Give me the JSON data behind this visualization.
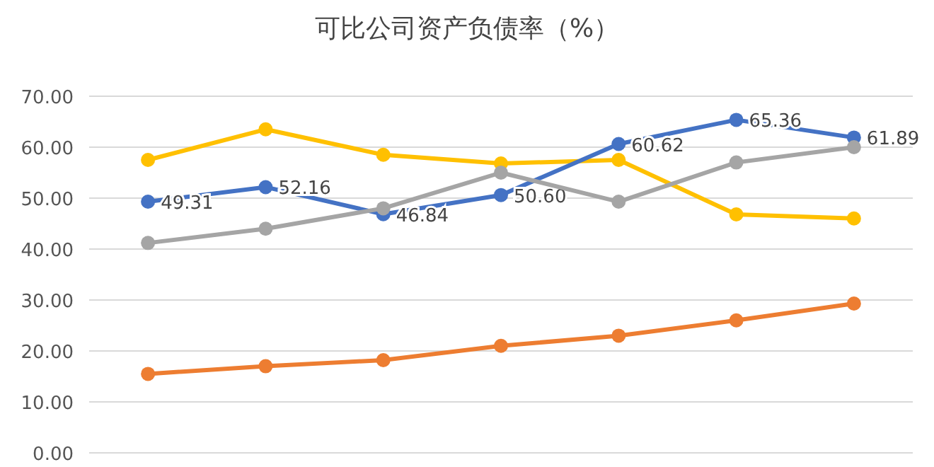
{
  "chart_data": {
    "type": "line",
    "title": "可比公司资产负债率（%）",
    "categories": [
      null,
      null,
      null,
      null,
      null,
      null,
      null
    ],
    "series": [
      {
        "color": "#ffc000",
        "values": [
          57.5,
          63.5,
          58.5,
          56.8,
          57.5,
          46.8,
          46.0
        ]
      },
      {
        "color": "#ed7d31",
        "values": [
          15.5,
          17.0,
          18.2,
          21.0,
          23.0,
          26.0,
          29.3
        ]
      },
      {
        "color": "#4472c4",
        "values": [
          49.31,
          52.16,
          46.84,
          50.6,
          60.62,
          65.36,
          61.89
        ],
        "value_labels": [
          "49.31",
          "52.16",
          "46.84",
          "50.60",
          "60.62",
          "65.36",
          "61.89"
        ]
      },
      {
        "color": "#a5a5a5",
        "values": [
          41.2,
          44.0,
          48.0,
          55.0,
          49.3,
          57.0,
          60.0
        ]
      }
    ],
    "ylim": [
      0,
      70
    ],
    "yticks": [
      {
        "value": 0,
        "label": "0.00"
      },
      {
        "value": 10,
        "label": "10.00"
      },
      {
        "value": 20,
        "label": "20.00"
      },
      {
        "value": 30,
        "label": "30.00"
      },
      {
        "value": 40,
        "label": "40.00"
      },
      {
        "value": 50,
        "label": "50.00"
      },
      {
        "value": 60,
        "label": "60.00"
      },
      {
        "value": 70,
        "label": "70.00"
      }
    ],
    "grid": "y",
    "marker": "circle",
    "line_style": "solid",
    "tick_labels": "y"
  }
}
